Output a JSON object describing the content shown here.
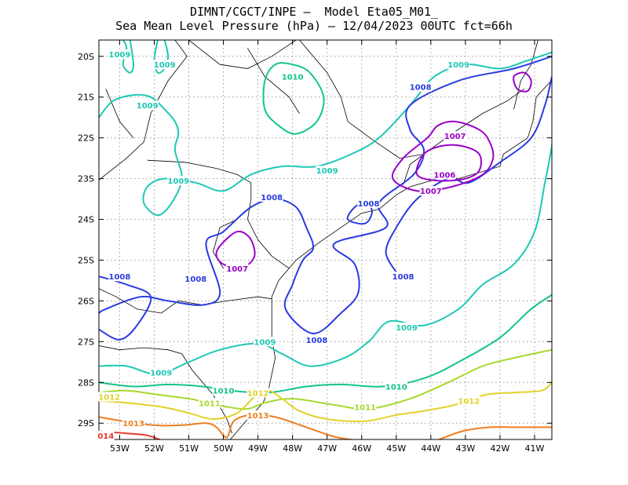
{
  "title": {
    "line1": "DIMNT/CGCT/INPE –  Model Eta05_M01_",
    "line2": "Sea Mean Level Pressure (hPa) – 12/04/2023 00UTC fct=66h"
  },
  "axes": {
    "lat_labels": [
      "20S",
      "21S",
      "22S",
      "23S",
      "24S",
      "25S",
      "26S",
      "27S",
      "28S",
      "29S"
    ],
    "lon_labels": [
      "53W",
      "52W",
      "51W",
      "50W",
      "49W",
      "48W",
      "47W",
      "46W",
      "45W",
      "44W",
      "43W",
      "42W",
      "41W"
    ],
    "lat_range": [
      -29.4,
      -19.6
    ],
    "lon_range": [
      -53.6,
      -40.5
    ]
  },
  "colors": {
    "1006": "#9a00c8",
    "1007": "#9a00c8",
    "1008": "#2a3be0",
    "1009": "#1ec8b4",
    "1010": "#13c48c",
    "1011": "#a6d82c",
    "1012": "#e2d22a",
    "1013": "#ee7e22",
    "1014": "#e83a2a",
    "coast": "#000000",
    "grid": "#999999"
  },
  "contour_labels": [
    {
      "text": "1009",
      "lat": -19.95,
      "lon": -53.0
    },
    {
      "text": "1009",
      "lat": -20.2,
      "lon": -51.7
    },
    {
      "text": "1010",
      "lat": -20.5,
      "lon": -48.0
    },
    {
      "text": "1009",
      "lat": -20.2,
      "lon": -43.2
    },
    {
      "text": "1009",
      "lat": -21.2,
      "lon": -52.2
    },
    {
      "text": "1008",
      "lat": -20.75,
      "lon": -44.3
    },
    {
      "text": "1007",
      "lat": -21.95,
      "lon": -43.3
    },
    {
      "text": "1006",
      "lat": -22.9,
      "lon": -43.6
    },
    {
      "text": "1007",
      "lat": -23.3,
      "lon": -44.0
    },
    {
      "text": "1009",
      "lat": -22.8,
      "lon": -47.0
    },
    {
      "text": "1009",
      "lat": -23.05,
      "lon": -51.3
    },
    {
      "text": "1008",
      "lat": -23.45,
      "lon": -48.6
    },
    {
      "text": "1008",
      "lat": -23.6,
      "lon": -45.8
    },
    {
      "text": "1007",
      "lat": -25.2,
      "lon": -49.6
    },
    {
      "text": "1008",
      "lat": -25.4,
      "lon": -53.0
    },
    {
      "text": "1008",
      "lat": -25.45,
      "lon": -50.8
    },
    {
      "text": "1008",
      "lat": -25.4,
      "lon": -44.8
    },
    {
      "text": "1009",
      "lat": -26.65,
      "lon": -44.7
    },
    {
      "text": "1008",
      "lat": -26.95,
      "lon": -47.3
    },
    {
      "text": "1009",
      "lat": -27.0,
      "lon": -48.8
    },
    {
      "text": "1009",
      "lat": -27.75,
      "lon": -51.8
    },
    {
      "text": "1010",
      "lat": -28.2,
      "lon": -50.0
    },
    {
      "text": "1010",
      "lat": -28.1,
      "lon": -45.0
    },
    {
      "text": "1012",
      "lat": -28.25,
      "lon": -49.0
    },
    {
      "text": "1012",
      "lat": -28.35,
      "lon": -53.3
    },
    {
      "text": "1011",
      "lat": -28.5,
      "lon": -50.4
    },
    {
      "text": "1011",
      "lat": -28.6,
      "lon": -45.9
    },
    {
      "text": "1012",
      "lat": -28.45,
      "lon": -42.9
    },
    {
      "text": "1013",
      "lat": -28.8,
      "lon": -49.0
    },
    {
      "text": "1013",
      "lat": -29.0,
      "lon": -52.6
    },
    {
      "text": "014",
      "lat": -29.3,
      "lon": -53.4
    }
  ]
}
